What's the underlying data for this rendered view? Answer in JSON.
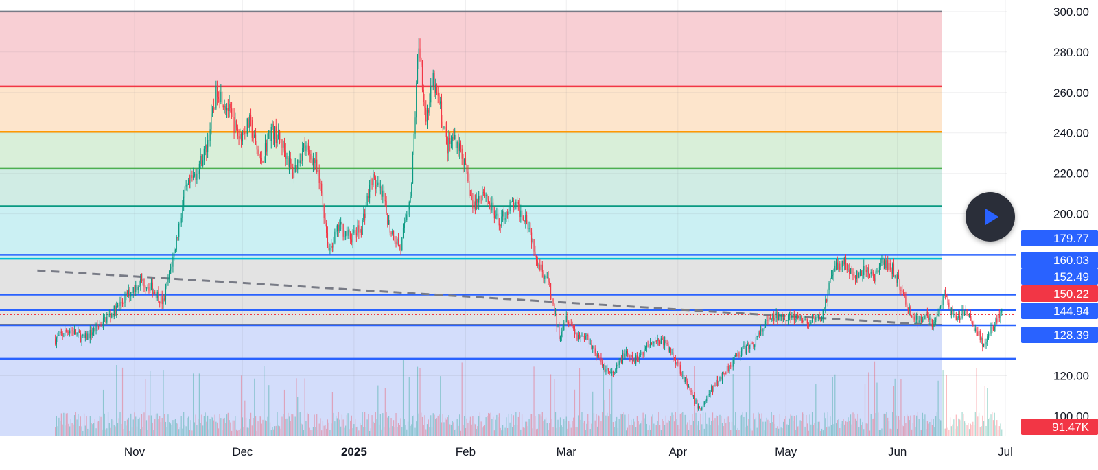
{
  "chart_data": {
    "type": "candlestick",
    "y_axis": {
      "min": 90,
      "max": 303,
      "ticks": [
        "300.00",
        "280.00",
        "260.00",
        "240.00",
        "220.00",
        "200.00",
        "120.00",
        "100.00"
      ]
    },
    "x_axis": {
      "labels": [
        {
          "text": "Nov",
          "date": "2024-11-01"
        },
        {
          "text": "Dec",
          "date": "2024-12-01"
        },
        {
          "text": "2025",
          "date": "2025-01-01",
          "bold": true
        },
        {
          "text": "Feb",
          "date": "2025-02-01"
        },
        {
          "text": "Mar",
          "date": "2025-03-01"
        },
        {
          "text": "Apr",
          "date": "2025-04-01"
        },
        {
          "text": "May",
          "date": "2025-05-01"
        },
        {
          "text": "Jun",
          "date": "2025-06-01"
        },
        {
          "text": "Jul",
          "date": "2025-07-01"
        }
      ]
    },
    "fib_levels": [
      {
        "value": 300,
        "line": "#787b86",
        "fill": "#f8cfd4"
      },
      {
        "value": 263,
        "line": "#f23645",
        "fill": "#fde5cc"
      },
      {
        "value": 240.5,
        "line": "#ff9800",
        "fill": "#d9efd9"
      },
      {
        "value": 222.3,
        "line": "#4caf50",
        "fill": "#d0ece4"
      },
      {
        "value": 203.8,
        "line": "#089981",
        "fill": "#cbf0f3"
      },
      {
        "value": 177.8,
        "line": "#00bcd4",
        "fill": "#e3e3e3"
      },
      {
        "value": 145.2,
        "line": "#787b86",
        "fill": "#d3ddfb"
      }
    ],
    "trendline": {
      "from": {
        "date": "2024-10-05",
        "value": 172
      },
      "to": {
        "date": "2025-06-12",
        "value": 145
      }
    },
    "price_lines": [
      {
        "value": 179.77,
        "label": "179.77",
        "color": "#2962ff"
      },
      {
        "value": 160.03,
        "label": "160.03",
        "color": "#2962ff"
      },
      {
        "value": 152.49,
        "label": "152.49",
        "color": "#2962ff"
      },
      {
        "value": 144.94,
        "label": "144.94",
        "color": "#2962ff"
      },
      {
        "value": 128.39,
        "label": "128.39",
        "color": "#2962ff"
      }
    ],
    "last_price": {
      "value": 150.22,
      "label": "150.22",
      "color": "#f23645"
    },
    "volume_label": {
      "label": "91.47K",
      "color": "#f23645"
    },
    "path": [
      [
        "2024-10-10",
        138
      ],
      [
        "2024-10-14",
        143
      ],
      [
        "2024-10-18",
        138
      ],
      [
        "2024-10-24",
        148
      ],
      [
        "2024-10-27",
        153
      ],
      [
        "2024-10-31",
        162
      ],
      [
        "2024-11-03",
        167
      ],
      [
        "2024-11-06",
        163
      ],
      [
        "2024-11-09",
        156
      ],
      [
        "2024-11-12",
        181
      ],
      [
        "2024-11-15",
        210
      ],
      [
        "2024-11-18",
        220
      ],
      [
        "2024-11-21",
        233
      ],
      [
        "2024-11-24",
        262
      ],
      [
        "2024-11-27",
        252
      ],
      [
        "2024-11-30",
        238
      ],
      [
        "2024-12-03",
        245
      ],
      [
        "2024-12-06",
        225
      ],
      [
        "2024-12-09",
        242
      ],
      [
        "2024-12-12",
        235
      ],
      [
        "2024-12-15",
        220
      ],
      [
        "2024-12-18",
        233
      ],
      [
        "2024-12-21",
        226
      ],
      [
        "2024-12-23",
        210
      ],
      [
        "2024-12-25",
        182
      ],
      [
        "2024-12-28",
        194
      ],
      [
        "2024-12-31",
        188
      ],
      [
        "2025-01-03",
        193
      ],
      [
        "2025-01-06",
        218
      ],
      [
        "2025-01-09",
        208
      ],
      [
        "2025-01-11",
        193
      ],
      [
        "2025-01-14",
        183
      ],
      [
        "2025-01-17",
        215
      ],
      [
        "2025-01-19",
        285
      ],
      [
        "2025-01-21",
        247
      ],
      [
        "2025-01-23",
        265
      ],
      [
        "2025-01-25",
        252
      ],
      [
        "2025-01-27",
        233
      ],
      [
        "2025-01-29",
        238
      ],
      [
        "2025-01-31",
        230
      ],
      [
        "2025-02-03",
        203
      ],
      [
        "2025-02-06",
        212
      ],
      [
        "2025-02-10",
        195
      ],
      [
        "2025-02-14",
        205
      ],
      [
        "2025-02-18",
        198
      ],
      [
        "2025-02-21",
        177
      ],
      [
        "2025-02-24",
        166
      ],
      [
        "2025-02-27",
        140
      ],
      [
        "2025-03-01",
        150
      ],
      [
        "2025-03-04",
        140
      ],
      [
        "2025-03-07",
        139
      ],
      [
        "2025-03-11",
        125
      ],
      [
        "2025-03-14",
        120
      ],
      [
        "2025-03-17",
        131
      ],
      [
        "2025-03-20",
        127
      ],
      [
        "2025-03-25",
        138
      ],
      [
        "2025-03-28",
        137
      ],
      [
        "2025-04-01",
        126
      ],
      [
        "2025-04-04",
        113
      ],
      [
        "2025-04-07",
        103
      ],
      [
        "2025-04-10",
        112
      ],
      [
        "2025-04-14",
        122
      ],
      [
        "2025-04-18",
        131
      ],
      [
        "2025-04-22",
        136
      ],
      [
        "2025-04-26",
        147
      ],
      [
        "2025-04-30",
        150
      ],
      [
        "2025-05-04",
        148
      ],
      [
        "2025-05-08",
        146
      ],
      [
        "2025-05-11",
        149
      ],
      [
        "2025-05-14",
        171
      ],
      [
        "2025-05-17",
        177
      ],
      [
        "2025-05-20",
        168
      ],
      [
        "2025-05-23",
        172
      ],
      [
        "2025-05-26",
        169
      ],
      [
        "2025-05-28",
        176
      ],
      [
        "2025-05-31",
        172
      ],
      [
        "2025-06-04",
        153
      ],
      [
        "2025-06-07",
        146
      ],
      [
        "2025-06-09",
        152
      ],
      [
        "2025-06-11",
        145
      ],
      [
        "2025-06-14",
        160
      ],
      [
        "2025-06-17",
        147
      ],
      [
        "2025-06-20",
        152
      ],
      [
        "2025-06-23",
        142
      ],
      [
        "2025-06-25",
        135
      ],
      [
        "2025-06-28",
        145
      ],
      [
        "2025-06-30",
        152
      ]
    ]
  }
}
